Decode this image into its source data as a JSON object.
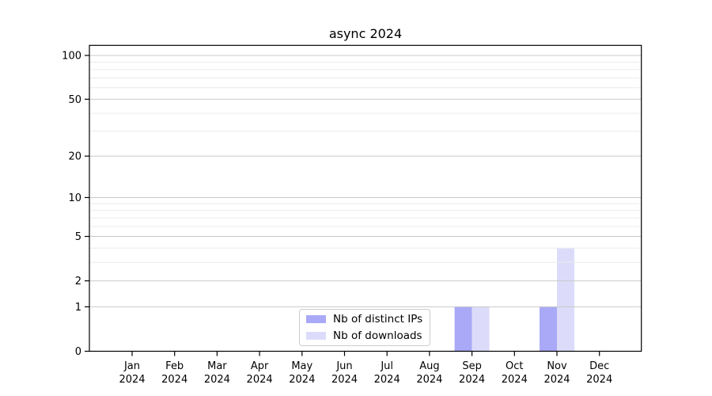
{
  "chart_data": {
    "type": "bar",
    "title": "async 2024",
    "categories": [
      "Jan 2024",
      "Feb 2024",
      "Mar 2024",
      "Apr 2024",
      "May 2024",
      "Jun 2024",
      "Jul 2024",
      "Aug 2024",
      "Sep 2024",
      "Oct 2024",
      "Nov 2024",
      "Dec 2024"
    ],
    "series": [
      {
        "name": "Nb of distinct IPs",
        "color": "#a9a9f7",
        "values": [
          0,
          0,
          0,
          0,
          0,
          0,
          0,
          0,
          1,
          0,
          1,
          0
        ]
      },
      {
        "name": "Nb of downloads",
        "color": "#dcdcfa",
        "values": [
          0,
          0,
          0,
          0,
          0,
          0,
          0,
          0,
          1,
          0,
          4,
          0
        ]
      }
    ],
    "xlabel": "",
    "ylabel": "",
    "yscale": "log10(value+1)",
    "ylim": [
      0,
      100
    ],
    "yticks": [
      0,
      1,
      2,
      5,
      10,
      20,
      50,
      100
    ],
    "minor_yticks": [
      3,
      4,
      6,
      7,
      8,
      9,
      30,
      40,
      60,
      70,
      80,
      90
    ],
    "grid": {
      "major_color": "#c9c9c9",
      "minor_color": "#ebebeb"
    },
    "legend_position": "lower center"
  }
}
